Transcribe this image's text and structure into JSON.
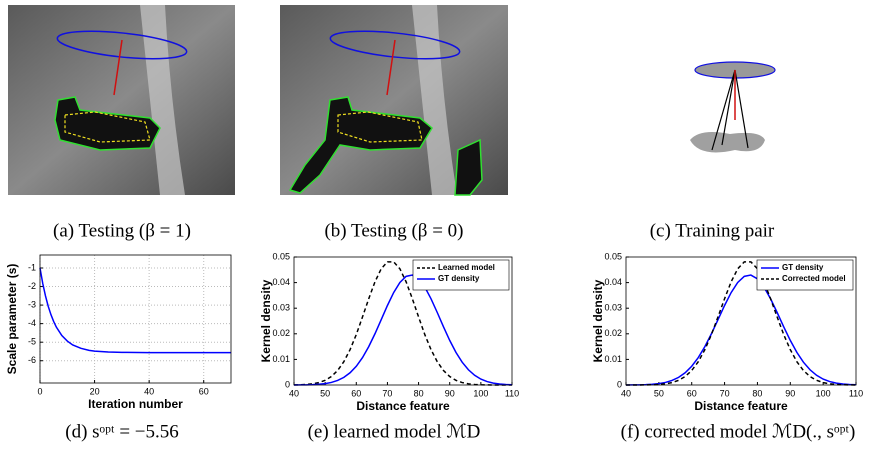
{
  "images": [
    {
      "caption": "(a) Testing (β = 1)"
    },
    {
      "caption": "(b) Testing (β = 0)"
    },
    {
      "caption": "(c) Training pair"
    }
  ],
  "chart_data": [
    {
      "type": "line",
      "caption": "(d) sᵒᵖᵗ = −5.56",
      "xlabel": "Iteration number",
      "ylabel": "Scale parameter (s)",
      "x": [
        0,
        1,
        2,
        3,
        4,
        5,
        6,
        8,
        10,
        12,
        15,
        18,
        20,
        25,
        30,
        40,
        50,
        60,
        70
      ],
      "values": [
        -1,
        -1.83,
        -2.5,
        -3.06,
        -3.51,
        -3.88,
        -4.19,
        -4.64,
        -4.94,
        -5.15,
        -5.33,
        -5.44,
        -5.48,
        -5.53,
        -5.55,
        -5.56,
        -5.56,
        -5.56,
        -5.56
      ],
      "color": "#0000ff",
      "xlim": [
        0,
        70
      ],
      "ylim": [
        -7.2,
        -0.3
      ],
      "xticks": [
        0,
        20,
        40,
        60
      ],
      "yticks": [
        -1,
        -2,
        -3,
        -4,
        -5,
        -6
      ],
      "grid": true
    },
    {
      "type": "line",
      "caption": "(e) learned model ℳD",
      "xlabel": "Distance feature",
      "ylabel": "Kernel density",
      "x": [
        40,
        42,
        44,
        46,
        48,
        50,
        52,
        54,
        56,
        58,
        60,
        62,
        64,
        66,
        68,
        70,
        72,
        74,
        76,
        78,
        80,
        82,
        84,
        86,
        88,
        90,
        92,
        94,
        96,
        98,
        100,
        102,
        104,
        106,
        108,
        110
      ],
      "series": [
        {
          "name": "Learned model",
          "color": "#000000",
          "style": "dashed",
          "values": [
            4e-05,
            9e-05,
            0.00021,
            0.00046,
            0.00095,
            0.00183,
            0.00331,
            0.00566,
            0.0091,
            0.0138,
            0.0197,
            0.0266,
            0.0337,
            0.0403,
            0.0454,
            0.0481,
            0.0481,
            0.0454,
            0.0403,
            0.0337,
            0.0266,
            0.0197,
            0.0138,
            0.0091,
            0.00566,
            0.00331,
            0.00183,
            0.00095,
            0.00046,
            0.00021,
            9e-05,
            4e-05,
            1e-05,
            0,
            0,
            0
          ]
        },
        {
          "name": "GT density",
          "color": "#0000ff",
          "style": "solid",
          "values": [
            1e-05,
            3e-05,
            7e-05,
            0.00014,
            0.00028,
            0.00054,
            0.001,
            0.00177,
            0.00297,
            0.00477,
            0.00732,
            0.01072,
            0.01499,
            0.02002,
            0.02552,
            0.03106,
            0.0361,
            0.04006,
            0.04245,
            0.04294,
            0.04147,
            0.03825,
            0.03368,
            0.02832,
            0.02273,
            0.01742,
            0.01275,
            0.00891,
            0.00595,
            0.00379,
            0.0023,
            0.00134,
            0.00074,
            0.00039,
            0.0002,
            0.0001
          ]
        }
      ],
      "xlim": [
        40,
        110
      ],
      "ylim": [
        0,
        0.05
      ],
      "xticks": [
        40,
        50,
        60,
        70,
        80,
        90,
        100,
        110
      ],
      "yticks": [
        0,
        0.01,
        0.02,
        0.03,
        0.04,
        0.05
      ],
      "grid": false,
      "legend": "upper right"
    },
    {
      "type": "line",
      "caption": "(f) corrected model ℳD(., sᵒᵖᵗ)",
      "xlabel": "Distance feature",
      "ylabel": "Kernel density",
      "x": [
        40,
        42,
        44,
        46,
        48,
        50,
        52,
        54,
        56,
        58,
        60,
        62,
        64,
        66,
        68,
        70,
        72,
        74,
        76,
        78,
        80,
        82,
        84,
        86,
        88,
        90,
        92,
        94,
        96,
        98,
        100,
        102,
        104,
        106,
        108,
        110
      ],
      "series": [
        {
          "name": "GT density",
          "color": "#0000ff",
          "style": "solid",
          "values": [
            1e-05,
            3e-05,
            7e-05,
            0.00014,
            0.00028,
            0.00054,
            0.001,
            0.00177,
            0.00297,
            0.00477,
            0.00732,
            0.01072,
            0.01499,
            0.02002,
            0.02552,
            0.03106,
            0.0361,
            0.04006,
            0.04245,
            0.04294,
            0.04147,
            0.03825,
            0.03368,
            0.02832,
            0.02273,
            0.01742,
            0.01275,
            0.00891,
            0.00595,
            0.00379,
            0.0023,
            0.00134,
            0.00074,
            0.00039,
            0.0002,
            0.0001
          ]
        },
        {
          "name": "Corrected model",
          "color": "#000000",
          "style": "dashed",
          "values": [
            0,
            1e-05,
            2e-05,
            4e-05,
            9e-05,
            0.00021,
            0.00046,
            0.00095,
            0.00183,
            0.00331,
            0.00566,
            0.0091,
            0.0138,
            0.0197,
            0.0266,
            0.0337,
            0.0403,
            0.0454,
            0.0481,
            0.0481,
            0.0454,
            0.0403,
            0.0337,
            0.0266,
            0.0197,
            0.0138,
            0.0091,
            0.00566,
            0.00331,
            0.00183,
            0.00095,
            0.00046,
            0.00021,
            9e-05,
            4e-05,
            1e-05
          ]
        }
      ],
      "xlim": [
        40,
        110
      ],
      "ylim": [
        0,
        0.05
      ],
      "xticks": [
        40,
        50,
        60,
        70,
        80,
        90,
        100,
        110
      ],
      "yticks": [
        0,
        0.01,
        0.02,
        0.03,
        0.04,
        0.05
      ],
      "grid": false,
      "legend": "upper right"
    }
  ]
}
